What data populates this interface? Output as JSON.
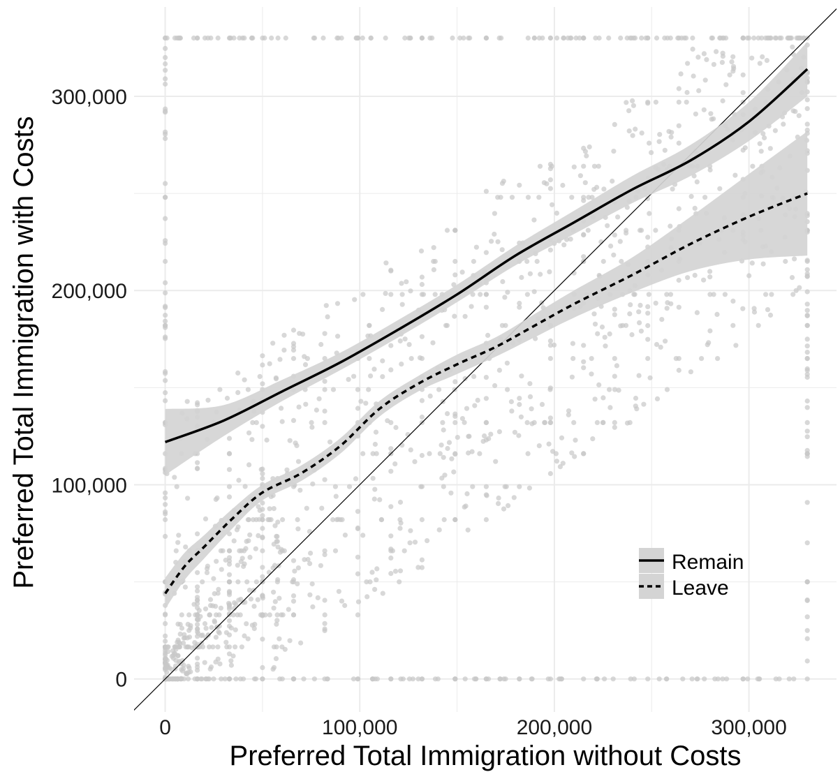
{
  "chart_data": {
    "type": "scatter",
    "title": "",
    "xlabel": "Preferred Total Immigration without Costs",
    "ylabel": "Preferred Total Immigration with Costs",
    "xlim": [
      -16000,
      345000
    ],
    "ylim": [
      -17000,
      346000
    ],
    "x_ticks": [
      0,
      100000,
      200000,
      300000
    ],
    "y_ticks": [
      0,
      100000,
      200000,
      300000
    ],
    "x_tick_labels": [
      "0",
      "100,000",
      "200,000",
      "300,000"
    ],
    "y_tick_labels": [
      "0",
      "100,000",
      "200,000",
      "300,000"
    ],
    "grid": true,
    "legend_position": "bottom-right",
    "reference_line": {
      "type": "identity",
      "slope": 1,
      "intercept": 0
    },
    "series": [
      {
        "name": "Remain",
        "style": "solid",
        "x": [
          0,
          30000,
          60000,
          90000,
          120000,
          150000,
          180000,
          210000,
          240000,
          270000,
          300000,
          330000
        ],
        "y": [
          122000,
          133000,
          148000,
          163000,
          180000,
          198000,
          218000,
          235000,
          252000,
          267000,
          287000,
          314000
        ],
        "ci_lower": [
          105000,
          125000,
          143000,
          159000,
          176000,
          194000,
          213000,
          229000,
          245000,
          259000,
          277000,
          300000
        ],
        "ci_upper": [
          139000,
          141000,
          154000,
          168000,
          185000,
          203000,
          223000,
          241000,
          259000,
          275000,
          297000,
          328000
        ]
      },
      {
        "name": "Leave",
        "style": "dashed",
        "x": [
          0,
          10000,
          20000,
          35000,
          50000,
          70000,
          90000,
          110000,
          130000,
          150000,
          170000,
          190000,
          210000,
          240000,
          270000,
          300000,
          330000
        ],
        "y": [
          44000,
          58000,
          68000,
          83000,
          96000,
          106000,
          120000,
          139000,
          152000,
          162000,
          171000,
          182000,
          193000,
          208000,
          224000,
          238000,
          250000
        ],
        "ci_lower": [
          36000,
          51000,
          62000,
          78000,
          92000,
          102000,
          116000,
          135000,
          148000,
          157000,
          166000,
          176000,
          186000,
          199000,
          210000,
          216000,
          218000
        ],
        "ci_upper": [
          52000,
          65000,
          74000,
          88000,
          100000,
          110000,
          124000,
          143000,
          156000,
          167000,
          176000,
          188000,
          200000,
          217000,
          238000,
          260000,
          282000
        ]
      }
    ],
    "colors": {
      "points": "#c7c7c7",
      "ribbon": "#d4d4d4",
      "line": "#000000",
      "grid": "#ebebeb"
    }
  }
}
